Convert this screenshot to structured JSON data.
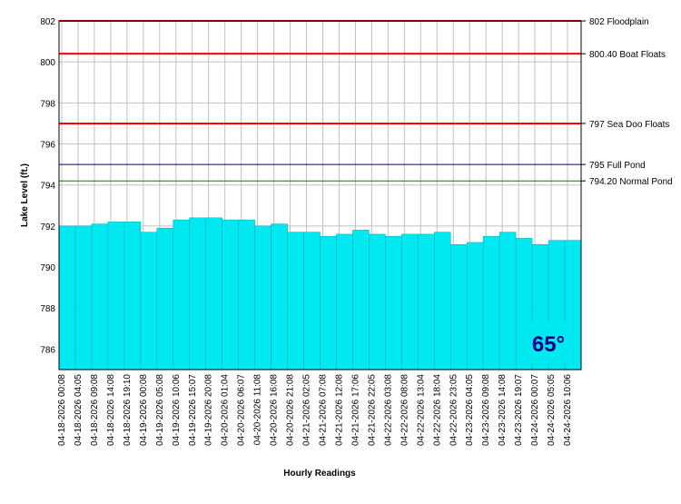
{
  "chart_data": {
    "type": "bar",
    "y_label": "Lake Level (ft.)",
    "x_label": "Hourly Readings",
    "categories": [
      "04-18-2026 00:08",
      "04-18-2026 04:05",
      "04-18-2026 09:08",
      "04-18-2026 14:08",
      "04-18-2026 19:10",
      "04-19-2026 00:08",
      "04-19-2026 05:08",
      "04-19-2026 10:06",
      "04-19-2026 15:07",
      "04-19-2026 20:08",
      "04-20-2026 01:04",
      "04-20-2026 06:07",
      "04-20-2026 11:08",
      "04-20-2026 16:08",
      "04-20-2026 21:08",
      "04-21-2026 02:05",
      "04-21-2026 07:08",
      "04-21-2026 12:08",
      "04-21-2026 17:06",
      "04-21-2026 22:05",
      "04-22-2026 03:08",
      "04-22-2026 08:08",
      "04-22-2026 13:04",
      "04-22-2026 18:04",
      "04-22-2026 23:05",
      "04-23-2026 04:05",
      "04-23-2026 09:08",
      "04-23-2026 14:08",
      "04-23-2026 19:07",
      "04-24-2026 00:07",
      "04-24-2026 05:05",
      "04-24-2026 10:06"
    ],
    "values": [
      792.0,
      792.0,
      792.1,
      792.2,
      792.2,
      791.7,
      791.9,
      792.3,
      792.4,
      792.4,
      792.3,
      792.3,
      792.0,
      792.1,
      791.7,
      791.7,
      791.5,
      791.6,
      791.8,
      791.6,
      791.5,
      791.6,
      791.6,
      791.7,
      791.1,
      791.2,
      791.5,
      791.7,
      791.4,
      791.1,
      791.3,
      791.3
    ],
    "color": "#00e8f0",
    "ylim": [
      785,
      802
    ],
    "yticks": [
      786,
      788,
      790,
      792,
      794,
      796,
      798,
      800,
      802
    ],
    "grid": true,
    "reference_lines": [
      {
        "value": 802,
        "label": "802 Floodplain",
        "color": "#ff0000"
      },
      {
        "value": 800.4,
        "label": "800.40 Boat Floats",
        "color": "#ff0000"
      },
      {
        "value": 797,
        "label": "797 Sea Doo Floats",
        "color": "#ff0000"
      },
      {
        "value": 795,
        "label": "795 Full Pond",
        "color": "#000080"
      },
      {
        "value": 794.2,
        "label": "794.20 Normal Pond",
        "color": "#008000"
      }
    ],
    "annotation": "65°"
  }
}
